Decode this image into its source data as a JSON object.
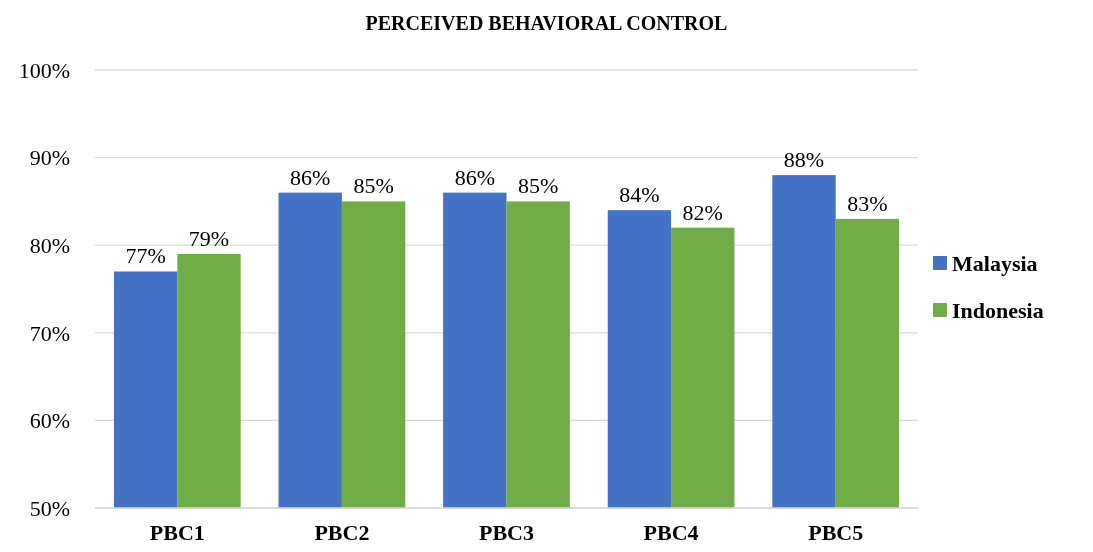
{
  "chart_data": {
    "type": "bar",
    "title": "PERCEIVED BEHAVIORAL CONTROL",
    "categories": [
      "PBC1",
      "PBC2",
      "PBC3",
      "PBC4",
      "PBC5"
    ],
    "series": [
      {
        "name": "Malaysia",
        "color": "#4472c4",
        "values": [
          77,
          86,
          86,
          84,
          88
        ],
        "value_labels": [
          "77%",
          "86%",
          "86%",
          "84%",
          "88%"
        ]
      },
      {
        "name": "Indonesia",
        "color": "#70ad47",
        "values": [
          79,
          85,
          85,
          82,
          83
        ],
        "value_labels": [
          "79%",
          "85%",
          "85%",
          "82%",
          "83%"
        ]
      }
    ],
    "ylim": [
      50,
      100
    ],
    "yticks": [
      {
        "value": 50,
        "label": "50%"
      },
      {
        "value": 60,
        "label": "60%"
      },
      {
        "value": 70,
        "label": "70%"
      },
      {
        "value": 80,
        "label": "80%"
      },
      {
        "value": 90,
        "label": "90%"
      },
      {
        "value": 100,
        "label": "100%"
      }
    ],
    "grid": "y",
    "legend": "right"
  }
}
